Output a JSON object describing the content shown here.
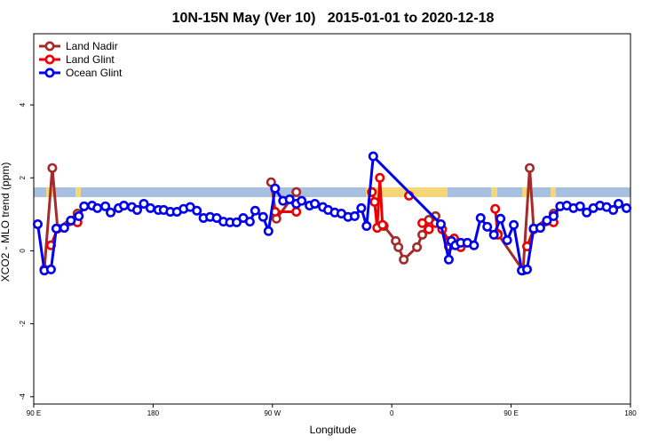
{
  "chart_data": {
    "type": "line",
    "title": "10N-15N May (Ver 10)   2015-01-01 to 2020-12-18",
    "x_label": "Longitude",
    "y_label": "XCO2 - MLO trend (ppm)",
    "xlim": [
      90,
      540
    ],
    "ylim": [
      -4.2,
      5.95
    ],
    "xticks": [
      {
        "value": 90,
        "label": "90 E"
      },
      180,
      {
        "value": 270,
        "label": "90 W"
      },
      {
        "value": 360,
        "label": "0"
      },
      {
        "value": 450,
        "label": "90 E"
      },
      {
        "value": 540,
        "label": "180"
      }
    ],
    "yticks": [
      -4,
      -2,
      0,
      2,
      4
    ],
    "legend": "top-left",
    "series": [
      {
        "name": "Land Nadir",
        "color": "#a52a2a",
        "x": [
          98,
          104,
          108,
          123,
          null,
          269,
          273,
          288,
          null,
          354,
          363,
          365,
          369,
          379,
          383,
          388,
          393,
          403,
          412,
          null,
          440,
          459,
          464,
          467,
          482
        ],
        "values": [
          -0.51,
          2.27,
          0.61,
          1.02,
          null,
          1.88,
          0.88,
          1.61,
          null,
          0.68,
          0.27,
          0.1,
          -0.24,
          0.1,
          0.44,
          0.85,
          0.95,
          0.12,
          0.15,
          null,
          0.46,
          -0.54,
          2.27,
          0.61,
          1.02
        ]
      },
      {
        "name": "Land Glint",
        "color": "#ee0000",
        "x": [
          103,
          108,
          123,
          null,
          272,
          288,
          null,
          345,
          347,
          349,
          351,
          353,
          null,
          373,
          null,
          383,
          388,
          393,
          398,
          403,
          407,
          412,
          null,
          438,
          440,
          null,
          462,
          467,
          482
        ],
        "values": [
          0.15,
          0.61,
          0.78,
          null,
          1.07,
          1.07,
          null,
          1.61,
          1.34,
          0.63,
          2.0,
          0.71,
          null,
          1.51,
          null,
          0.76,
          0.59,
          0.76,
          0.59,
          0.27,
          0.34,
          0.1,
          null,
          1.15,
          0.44,
          null,
          0.12,
          0.59,
          0.78
        ]
      },
      {
        "name": "Ocean Glint",
        "color": "#0000ee",
        "x": [
          93,
          98,
          103,
          107,
          113,
          118,
          124,
          128,
          134,
          138,
          144,
          148,
          154,
          158,
          164,
          168,
          173,
          178,
          184,
          188,
          193,
          198,
          203,
          208,
          213,
          218,
          223,
          228,
          233,
          238,
          243,
          248,
          253,
          257,
          263,
          267,
          272,
          278,
          283,
          288,
          292,
          298,
          302,
          308,
          312,
          317,
          322,
          327,
          332,
          337,
          341,
          346,
          397,
          403,
          405,
          408,
          412,
          417,
          422,
          427,
          432,
          437,
          442,
          447,
          452,
          458,
          462,
          467,
          472,
          477,
          482,
          487,
          492,
          497,
          502,
          507,
          512,
          517,
          522,
          527,
          531,
          537
        ],
        "values": [
          0.73,
          -0.54,
          -0.51,
          0.61,
          0.63,
          0.83,
          0.95,
          1.22,
          1.24,
          1.17,
          1.22,
          1.05,
          1.17,
          1.24,
          1.2,
          1.12,
          1.29,
          1.17,
          1.12,
          1.12,
          1.07,
          1.07,
          1.15,
          1.2,
          1.1,
          0.9,
          0.93,
          0.9,
          0.8,
          0.78,
          0.78,
          0.9,
          0.8,
          1.1,
          0.93,
          0.54,
          1.71,
          1.37,
          1.41,
          1.29,
          1.37,
          1.24,
          1.29,
          1.2,
          1.12,
          1.05,
          1.02,
          0.93,
          0.95,
          1.17,
          0.68,
          2.59,
          0.73,
          -0.24,
          0.27,
          0.15,
          0.22,
          0.22,
          0.15,
          0.9,
          0.66,
          0.44,
          0.88,
          0.29,
          0.71,
          -0.54,
          -0.51,
          0.61,
          0.63,
          0.83,
          0.95,
          1.22,
          1.24,
          1.17,
          1.22,
          1.05,
          1.17,
          1.24,
          1.2,
          1.12,
          1.29,
          1.17
        ]
      }
    ]
  }
}
